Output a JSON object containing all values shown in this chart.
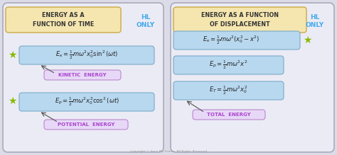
{
  "fig_width": 4.74,
  "fig_height": 2.19,
  "dpi": 100,
  "bg_color": "#dcdce8",
  "panel_bg": "#ebebf5",
  "panel_border": "#aaaabb",
  "title_box_color": "#f5e6b0",
  "title_box_border": "#ccaa44",
  "eq_box_color": "#b8d8f0",
  "eq_box_border": "#7aaac8",
  "label_box_color": "#e8d8f8",
  "label_box_border": "#bb88cc",
  "label_text_color": "#aa44cc",
  "hl_color": "#44aaee",
  "star_color": "#88bb00",
  "text_color": "#222222",
  "arrow_color": "#555555",
  "copyright_text": "Copyright © Save My Exams. All Rights Reserved",
  "panel1_title": "ENERGY AS A\nFUNCTION OF TIME",
  "panel2_title": "ENERGY AS A FUNCTION\nOF DISPLACEMENT",
  "hl_label": "HL\nONLY",
  "eq1_ek": "$E_{\\kappa} = \\frac{1}{2}m\\omega^2 x_0^2 \\sin^2(\\omega t)$",
  "eq1_ep": "$E_p = \\frac{1}{2}m\\omega^2 x_0^2 \\cos^2(\\omega t)$",
  "label1_ek": "KINETIC  ENERGY",
  "label1_ep": "POTENTIAL  ENERGY",
  "eq2_ek": "$E_{\\kappa} = \\frac{1}{2}m\\omega^2(x_0^2 - x^2)$",
  "eq2_ep": "$E_p = \\frac{1}{2}m\\omega^2 x^2$",
  "eq2_et": "$E_T = \\frac{1}{2}m\\omega^2 x_0^2$",
  "label2_et": "TOTAL  ENERGY"
}
